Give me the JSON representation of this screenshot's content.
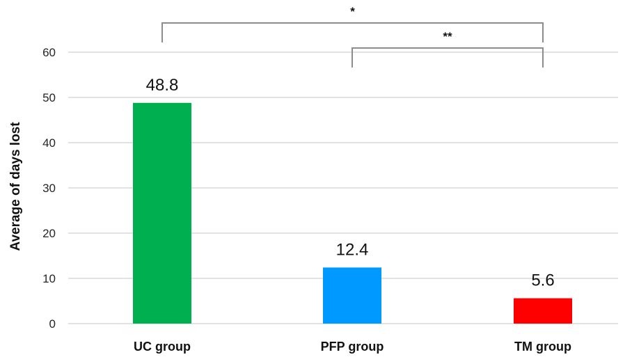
{
  "chart_data": {
    "type": "bar",
    "categories": [
      "UC group",
      "PFP group",
      "TM group"
    ],
    "values": [
      48.8,
      12.4,
      5.6
    ],
    "data_labels": [
      "48.8",
      "12.4",
      "5.6"
    ],
    "colors": [
      "#00b050",
      "#0099ff",
      "#ff0000"
    ],
    "title": "",
    "xlabel": "",
    "ylabel": "Average of days lost",
    "ylim": [
      0,
      60
    ],
    "yticks": [
      0,
      10,
      20,
      30,
      40,
      50,
      60
    ],
    "grid": true,
    "gridline_color": "#d9d9d9",
    "significance": [
      {
        "from": "UC group",
        "to": "TM group",
        "label": "*"
      },
      {
        "from": "PFP group",
        "to": "TM group",
        "label": "**"
      }
    ]
  }
}
